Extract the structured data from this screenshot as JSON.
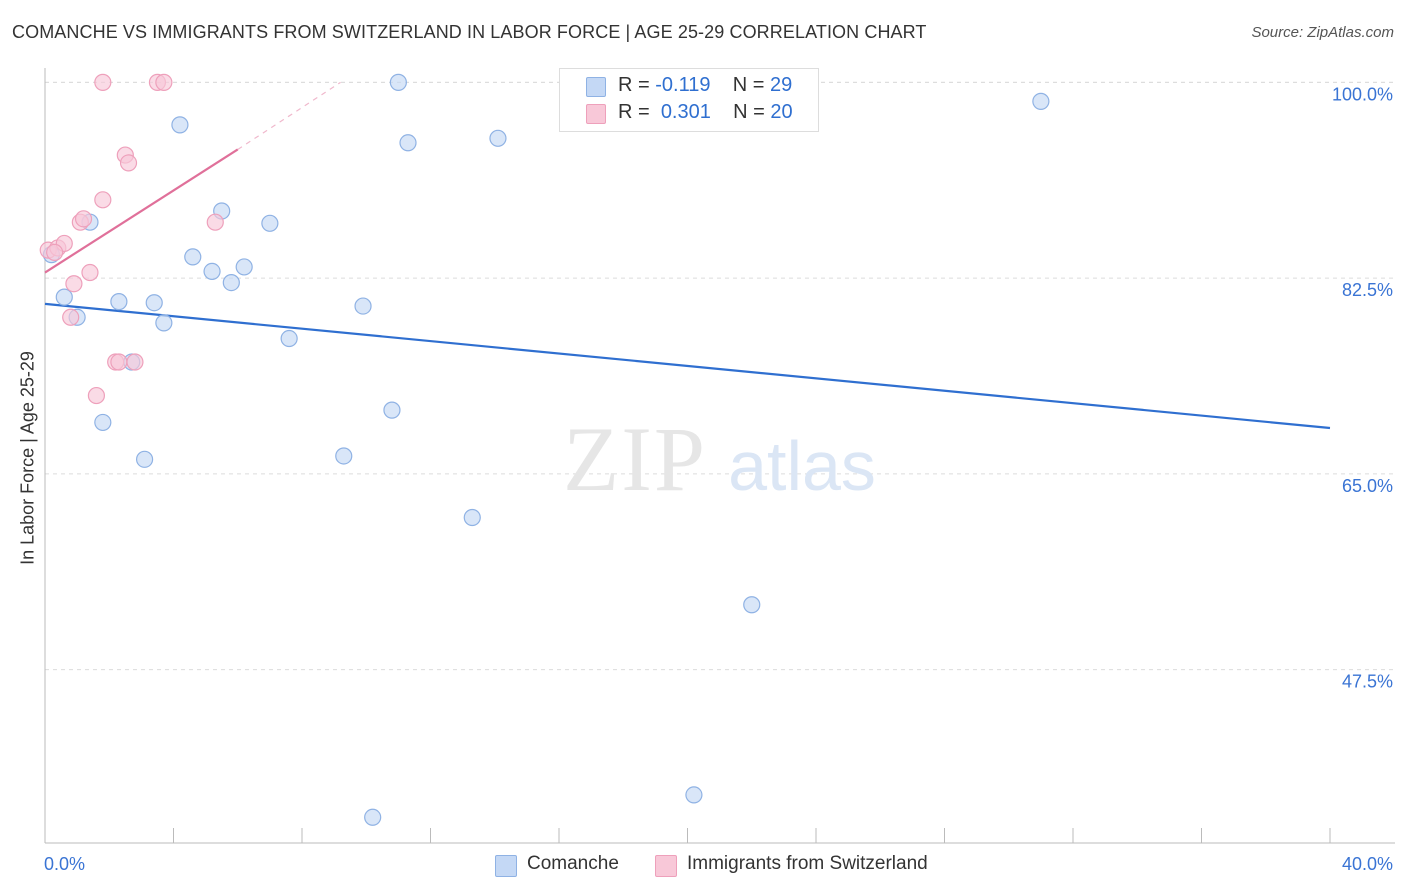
{
  "title": "COMANCHE VS IMMIGRANTS FROM SWITZERLAND IN LABOR FORCE | AGE 25-29 CORRELATION CHART",
  "source": "Source: ZipAtlas.com",
  "watermark": {
    "zip": "ZIP",
    "atlas": "atlas"
  },
  "colors": {
    "blue": "#2f6fd0",
    "blue_fill": "#c4d8f5",
    "blue_stroke": "#8fb2e4",
    "pink": "#e0709a",
    "pink_fill": "#f8c8d8",
    "pink_stroke": "#eea0bb",
    "tick_label": "#3a74d4",
    "grid": "#dcdcdc"
  },
  "legend": {
    "rows": [
      {
        "r_label": "R = ",
        "r_value": "-0.119",
        "n_label": "N = ",
        "n_value": "29"
      },
      {
        "r_label": "R = ",
        "r_value": "0.301",
        "n_label": "N = ",
        "n_value": "20"
      }
    ]
  },
  "chart_data": {
    "type": "scatter",
    "title": "COMANCHE VS IMMIGRANTS FROM SWITZERLAND IN LABOR FORCE | AGE 25-29 CORRELATION CHART",
    "xlabel": "",
    "ylabel": "In Labor Force | Age 25-29",
    "xlim": [
      0,
      40
    ],
    "ylim": [
      32,
      102
    ],
    "x_tick_labels": [
      "0.0%",
      "40.0%"
    ],
    "y_ticks": [
      47.5,
      65.0,
      82.5,
      100.0
    ],
    "y_tick_labels": [
      "47.5%",
      "65.0%",
      "82.5%",
      "100.0%"
    ],
    "grid": true,
    "series": [
      {
        "name": "Comanche",
        "color": "blue",
        "points": [
          [
            0.2,
            84.6
          ],
          [
            0.6,
            80.8
          ],
          [
            1.0,
            79.0
          ],
          [
            1.4,
            87.5
          ],
          [
            1.8,
            69.6
          ],
          [
            2.3,
            80.4
          ],
          [
            2.7,
            75.0
          ],
          [
            3.1,
            66.3
          ],
          [
            3.4,
            80.3
          ],
          [
            3.7,
            78.5
          ],
          [
            4.2,
            96.2
          ],
          [
            4.6,
            84.4
          ],
          [
            5.2,
            83.1
          ],
          [
            5.5,
            88.5
          ],
          [
            5.8,
            82.1
          ],
          [
            6.2,
            83.5
          ],
          [
            7.0,
            87.4
          ],
          [
            7.6,
            77.1
          ],
          [
            9.3,
            66.6
          ],
          [
            9.9,
            80.0
          ],
          [
            10.2,
            34.3
          ],
          [
            10.8,
            70.7
          ],
          [
            11.0,
            100.0
          ],
          [
            11.3,
            94.6
          ],
          [
            13.3,
            61.1
          ],
          [
            14.1,
            95.0
          ],
          [
            22.0,
            53.3
          ],
          [
            20.2,
            36.3
          ],
          [
            31.0,
            98.3
          ]
        ]
      },
      {
        "name": "Immigrants from Switzerland",
        "color": "pink",
        "points": [
          [
            0.1,
            85.0
          ],
          [
            0.4,
            85.2
          ],
          [
            0.6,
            85.6
          ],
          [
            0.8,
            79.0
          ],
          [
            0.9,
            82.0
          ],
          [
            1.1,
            87.5
          ],
          [
            1.2,
            87.8
          ],
          [
            1.4,
            83.0
          ],
          [
            1.6,
            72.0
          ],
          [
            1.8,
            89.5
          ],
          [
            1.8,
            100.0
          ],
          [
            2.2,
            75.0
          ],
          [
            2.3,
            75.0
          ],
          [
            2.5,
            93.5
          ],
          [
            2.6,
            92.8
          ],
          [
            2.8,
            75.0
          ],
          [
            3.5,
            100.0
          ],
          [
            3.7,
            100.0
          ],
          [
            5.3,
            87.5
          ],
          [
            0.3,
            84.8
          ]
        ]
      }
    ],
    "trend_lines": [
      {
        "series": "Comanche",
        "x": [
          0,
          40
        ],
        "y": [
          80.2,
          69.1
        ]
      },
      {
        "series": "Immigrants from Switzerland",
        "x": [
          0,
          6.0
        ],
        "y": [
          83.0,
          94.0
        ],
        "dashed_extension_x": [
          6.0,
          9.2
        ],
        "dashed_extension_y": [
          94.0,
          100.0
        ]
      }
    ]
  }
}
